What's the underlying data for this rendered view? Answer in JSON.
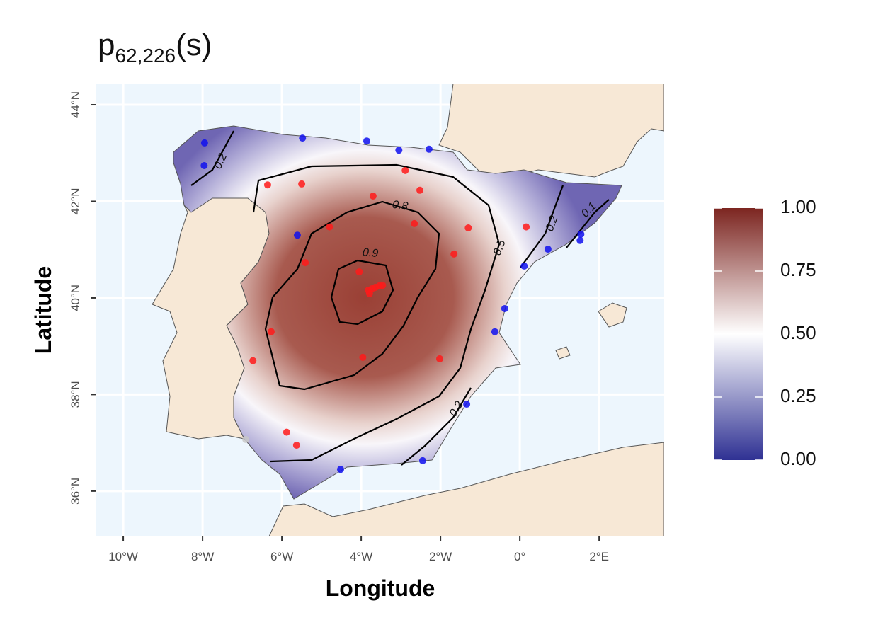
{
  "chart_data": {
    "type": "map",
    "title": {
      "main": "p",
      "subscript": "62,226",
      "suffix": "(s)"
    },
    "x_label": "Longitude",
    "y_label": "Latitude",
    "xlim": [
      -10.68,
      3.64
    ],
    "ylim": [
      35.06,
      44.44
    ],
    "xticks": [
      {
        "value": -10,
        "label": "10°W"
      },
      {
        "value": -8,
        "label": "8°W"
      },
      {
        "value": -6,
        "label": "6°W"
      },
      {
        "value": -4,
        "label": "4°W"
      },
      {
        "value": -2,
        "label": "2°W"
      },
      {
        "value": 0,
        "label": "0°"
      },
      {
        "value": 2,
        "label": "2°E"
      }
    ],
    "yticks": [
      {
        "value": 36,
        "label": "36°N"
      },
      {
        "value": 38,
        "label": "38°N"
      },
      {
        "value": 40,
        "label": "40°N"
      },
      {
        "value": 42,
        "label": "42°N"
      },
      {
        "value": 44,
        "label": "44°N"
      }
    ],
    "grid": true,
    "colorbar": {
      "lim": [
        0,
        1
      ],
      "low_color": "#2f3193",
      "mid_color": "#ffffff",
      "high_color": "#7c2520",
      "ticks": [
        {
          "value": 0,
          "label": "0.00"
        },
        {
          "value": 0.25,
          "label": "0.25"
        },
        {
          "value": 0.5,
          "label": "0.50"
        },
        {
          "value": 0.75,
          "label": "0.75"
        },
        {
          "value": 1,
          "label": "1.00"
        }
      ]
    },
    "contour_labels": [
      0.2,
      0.8,
      0.9,
      0.5,
      0.2,
      0.1,
      0.2
    ],
    "series": [
      {
        "color": "#1010ee",
        "lon": [
          -7.95,
          -7.96,
          -5.48,
          -3.86,
          -3.05,
          -2.29,
          -5.61,
          0.71,
          1.54,
          1.52,
          0.11,
          -0.38,
          -0.63,
          -1.34,
          -2.45,
          -4.52
        ],
        "lat": [
          43.21,
          42.74,
          43.31,
          43.25,
          43.06,
          43.08,
          41.3,
          41.01,
          41.32,
          41.19,
          40.66,
          39.78,
          39.3,
          37.8,
          36.63,
          36.45
        ]
      },
      {
        "color": "#ff1a1a",
        "lon": [
          -6.36,
          -5.5,
          -2.89,
          -3.7,
          -2.52,
          -4.8,
          -2.66,
          -1.3,
          0.16,
          -5.41,
          -4.05,
          -1.66,
          -3.82,
          -3.73,
          -3.64,
          -3.54,
          -3.46,
          -3.79,
          -6.27,
          -3.96,
          -2.02,
          -6.73,
          -5.88,
          -5.63
        ],
        "lat": [
          42.34,
          42.36,
          42.64,
          42.11,
          42.23,
          41.47,
          41.54,
          41.45,
          41.47,
          40.73,
          40.54,
          40.91,
          40.16,
          40.19,
          40.22,
          40.25,
          40.26,
          40.09,
          39.3,
          38.77,
          38.74,
          38.7,
          37.22,
          36.95
        ]
      },
      {
        "color": "#c8c8c8",
        "lon": [
          -6.91
        ],
        "lat": [
          37.07
        ]
      }
    ]
  }
}
